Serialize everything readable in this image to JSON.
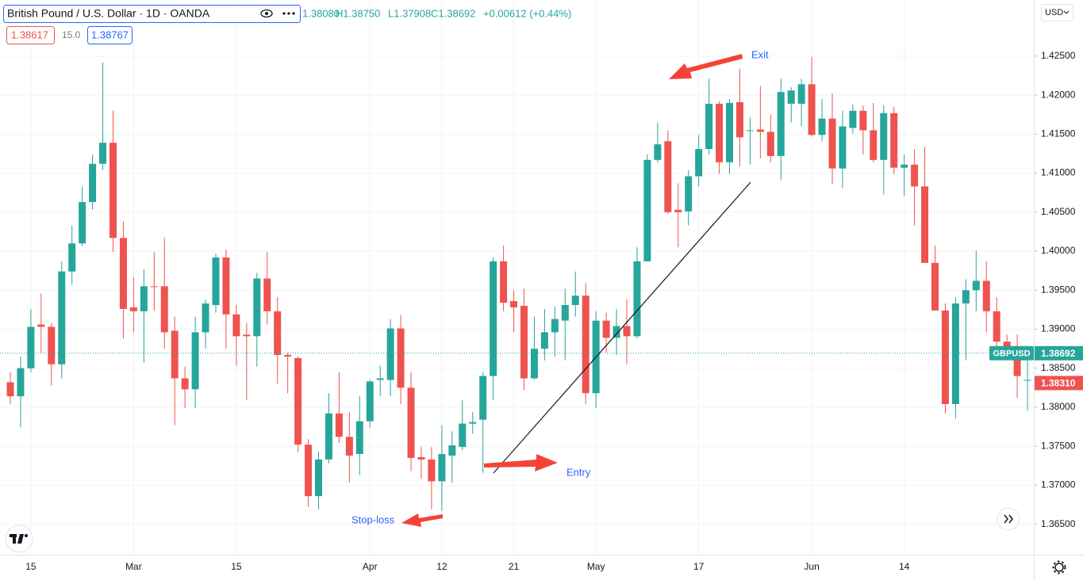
{
  "header": {
    "symbol": "British Pound / U.S. Dollar · 1D · OANDA",
    "ohlc": [
      "1.38080",
      "H1.38750",
      "L1.37908",
      "C1.38692",
      "+0.00612 (+0.44%)"
    ],
    "indicator": [
      "1.38617",
      "15.0",
      "1.38767"
    ],
    "currency": "USD"
  },
  "chart_data": {
    "type": "candlestick",
    "categories": [
      null,
      null,
      "15",
      null,
      null,
      null,
      null,
      null,
      null,
      null,
      null,
      null,
      "Mar",
      null,
      null,
      null,
      null,
      null,
      null,
      null,
      null,
      null,
      "15",
      null,
      null,
      null,
      null,
      null,
      null,
      null,
      null,
      null,
      null,
      null,
      null,
      "Apr",
      null,
      null,
      null,
      null,
      null,
      null,
      "12",
      null,
      null,
      null,
      null,
      null,
      null,
      "21",
      null,
      null,
      null,
      null,
      null,
      null,
      null,
      "May",
      null,
      null,
      null,
      null,
      null,
      null,
      null,
      null,
      null,
      "17",
      null,
      null,
      null,
      null,
      null,
      null,
      null,
      null,
      null,
      null,
      "Jun",
      null,
      null,
      null,
      null,
      null,
      null,
      null,
      null,
      "14",
      null,
      null,
      null,
      null,
      null,
      null,
      null,
      null,
      null,
      null,
      null,
      null
    ],
    "open": [
      1.3832,
      1.3814,
      1.385,
      1.3906,
      1.3903,
      1.3855,
      1.3974,
      1.401,
      1.4063,
      1.4112,
      1.4139,
      1.4017,
      1.3928,
      1.3923,
      1.3955,
      1.3955,
      1.3898,
      1.3837,
      1.3823,
      1.3896,
      1.3931,
      1.3992,
      1.3919,
      1.3893,
      1.3891,
      1.3965,
      1.3923,
      1.3867,
      1.3863,
      1.3752,
      1.3686,
      1.3733,
      1.3792,
      1.3762,
      1.374,
      1.3782,
      1.3835,
      1.3835,
      1.3901,
      1.3825,
      1.3736,
      1.3733,
      1.3705,
      1.3738,
      1.3749,
      1.3779,
      1.3784,
      1.384,
      1.3987,
      1.3936,
      1.393,
      1.3837,
      1.3875,
      1.3896,
      1.3911,
      1.3931,
      1.3943,
      1.3818,
      1.3911,
      1.3889,
      1.3904,
      1.3891,
      1.3987,
      1.4117,
      1.4141,
      1.4053,
      1.4051,
      1.4096,
      1.4131,
      1.4189,
      1.4114,
      1.4191,
      1.4154,
      1.4156,
      1.4153,
      1.4122,
      1.4189,
      1.4189,
      1.4214,
      1.4149,
      1.417,
      1.4106,
      1.4158,
      1.418,
      1.4155,
      1.4117,
      1.4177,
      1.4107,
      1.4111,
      1.4083,
      1.3985,
      1.3924,
      1.3804,
      1.3933,
      1.395,
      1.3962,
      1.3923,
      1.3884,
      1.3878,
      1.3834
    ],
    "high": [
      1.3845,
      1.3865,
      1.3926,
      1.3946,
      1.3908,
      1.3987,
      1.4033,
      1.4083,
      1.4124,
      1.4242,
      1.418,
      1.4038,
      1.3967,
      1.3977,
      1.3999,
      1.4017,
      1.3916,
      1.3852,
      1.3916,
      1.3938,
      1.3997,
      1.4002,
      1.3931,
      1.3908,
      1.3972,
      1.3999,
      1.3941,
      1.387,
      1.3865,
      1.3759,
      1.3743,
      1.3818,
      1.3845,
      1.3794,
      1.3814,
      1.3835,
      1.3853,
      1.3913,
      1.3918,
      1.3845,
      1.3749,
      1.3749,
      1.3777,
      1.3769,
      1.3809,
      1.3794,
      1.3845,
      1.3992,
      1.4007,
      1.395,
      1.3952,
      1.3916,
      1.3926,
      1.3929,
      1.3952,
      1.3974,
      1.3959,
      1.3923,
      1.3921,
      1.3926,
      1.3938,
      1.4005,
      1.4124,
      1.4165,
      1.4155,
      1.4087,
      1.4104,
      1.4149,
      1.4221,
      1.4192,
      1.4195,
      1.4234,
      1.4172,
      1.4212,
      1.4175,
      1.4221,
      1.421,
      1.4221,
      1.4249,
      1.4195,
      1.4202,
      1.418,
      1.4188,
      1.4187,
      1.419,
      1.4187,
      1.4185,
      1.4124,
      1.4131,
      1.4134,
      1.4007,
      1.3933,
      1.3941,
      1.3964,
      1.4001,
      1.3987,
      1.3941,
      1.3893,
      1.3893,
      1.386
    ],
    "low": [
      1.3804,
      1.3774,
      1.3845,
      1.387,
      1.3828,
      1.3837,
      1.3957,
      1.4007,
      1.4053,
      1.4104,
      1.3999,
      1.3888,
      1.3896,
      1.3857,
      1.3924,
      1.3875,
      1.3777,
      1.3799,
      1.3799,
      1.3875,
      1.3921,
      1.3875,
      1.3853,
      1.3809,
      1.3852,
      1.3906,
      1.383,
      1.3818,
      1.3743,
      1.3672,
      1.3669,
      1.3728,
      1.3754,
      1.3703,
      1.3713,
      1.3774,
      1.3814,
      1.3814,
      1.3804,
      1.3718,
      1.3708,
      1.3669,
      1.3667,
      1.3703,
      1.3745,
      1.3766,
      1.3716,
      1.3809,
      1.3923,
      1.3896,
      1.3822,
      1.3835,
      1.386,
      1.3865,
      1.386,
      1.3916,
      1.3804,
      1.3799,
      1.387,
      1.3867,
      1.3855,
      1.3888,
      1.3987,
      1.4114,
      1.4048,
      1.4005,
      1.4033,
      1.4083,
      1.4124,
      1.4099,
      1.4099,
      1.4109,
      1.4111,
      1.4119,
      1.4114,
      1.4091,
      1.4165,
      1.416,
      1.4147,
      1.4141,
      1.4086,
      1.4081,
      1.4151,
      1.4124,
      1.4114,
      1.4073,
      1.4099,
      1.4071,
      1.4033,
      1.3985,
      1.3924,
      1.3792,
      1.3786,
      1.386,
      1.3923,
      1.3896,
      1.3865,
      1.3875,
      1.3812,
      1.3796
    ],
    "close": [
      1.3814,
      1.385,
      1.3903,
      1.3903,
      1.3855,
      1.3974,
      1.401,
      1.4063,
      1.4112,
      1.4139,
      1.4017,
      1.3926,
      1.3923,
      1.3955,
      1.3954,
      1.3896,
      1.3837,
      1.3823,
      1.3896,
      1.3933,
      1.3992,
      1.3919,
      1.3891,
      1.3891,
      1.3965,
      1.3923,
      1.3867,
      1.3865,
      1.3752,
      1.3686,
      1.3733,
      1.3792,
      1.3762,
      1.3738,
      1.3782,
      1.3833,
      1.3837,
      1.3901,
      1.3825,
      1.3735,
      1.3733,
      1.3705,
      1.374,
      1.3751,
      1.3779,
      1.3781,
      1.384,
      1.3987,
      1.3934,
      1.3928,
      1.3837,
      1.3875,
      1.3896,
      1.3913,
      1.3931,
      1.3943,
      1.3818,
      1.3911,
      1.3889,
      1.3904,
      1.3891,
      1.3987,
      1.4117,
      1.4137,
      1.405,
      1.405,
      1.4096,
      1.4131,
      1.4189,
      1.4114,
      1.419,
      1.4146,
      1.4155,
      1.4153,
      1.4122,
      1.4204,
      1.4206,
      1.4214,
      1.4149,
      1.417,
      1.4106,
      1.416,
      1.418,
      1.4155,
      1.4117,
      1.4177,
      1.4107,
      1.4111,
      1.4083,
      1.3985,
      1.3924,
      1.3804,
      1.3933,
      1.395,
      1.3962,
      1.3923,
      1.3884,
      1.3878,
      1.384,
      1.3835
    ],
    "up_color": "#26a69a",
    "down_color": "#ef5350",
    "ylim": [
      1.3611,
      1.4322
    ],
    "yticks": [
      {
        "value": 1.365,
        "label": "1.36500"
      },
      {
        "value": 1.37,
        "label": "1.37000"
      },
      {
        "value": 1.375,
        "label": "1.37500"
      },
      {
        "value": 1.38,
        "label": "1.38000"
      },
      {
        "value": 1.385,
        "label": "1.38500"
      },
      {
        "value": 1.39,
        "label": "1.39000"
      },
      {
        "value": 1.395,
        "label": "1.39500"
      },
      {
        "value": 1.4,
        "label": "1.40000"
      },
      {
        "value": 1.405,
        "label": "1.40500"
      },
      {
        "value": 1.41,
        "label": "1.41000"
      },
      {
        "value": 1.415,
        "label": "1.41500"
      },
      {
        "value": 1.42,
        "label": "1.42000"
      },
      {
        "value": 1.425,
        "label": "1.42500"
      }
    ],
    "grid": true,
    "last_price": {
      "name": "GBPUSD",
      "value": 1.38692,
      "color": "#26a69a"
    },
    "price_tags": [
      {
        "value": 1.3831,
        "label": "1.38310",
        "color": "#ef5350"
      }
    ],
    "annotations": [
      "Exit",
      "Entry",
      "Stop-loss"
    ]
  }
}
